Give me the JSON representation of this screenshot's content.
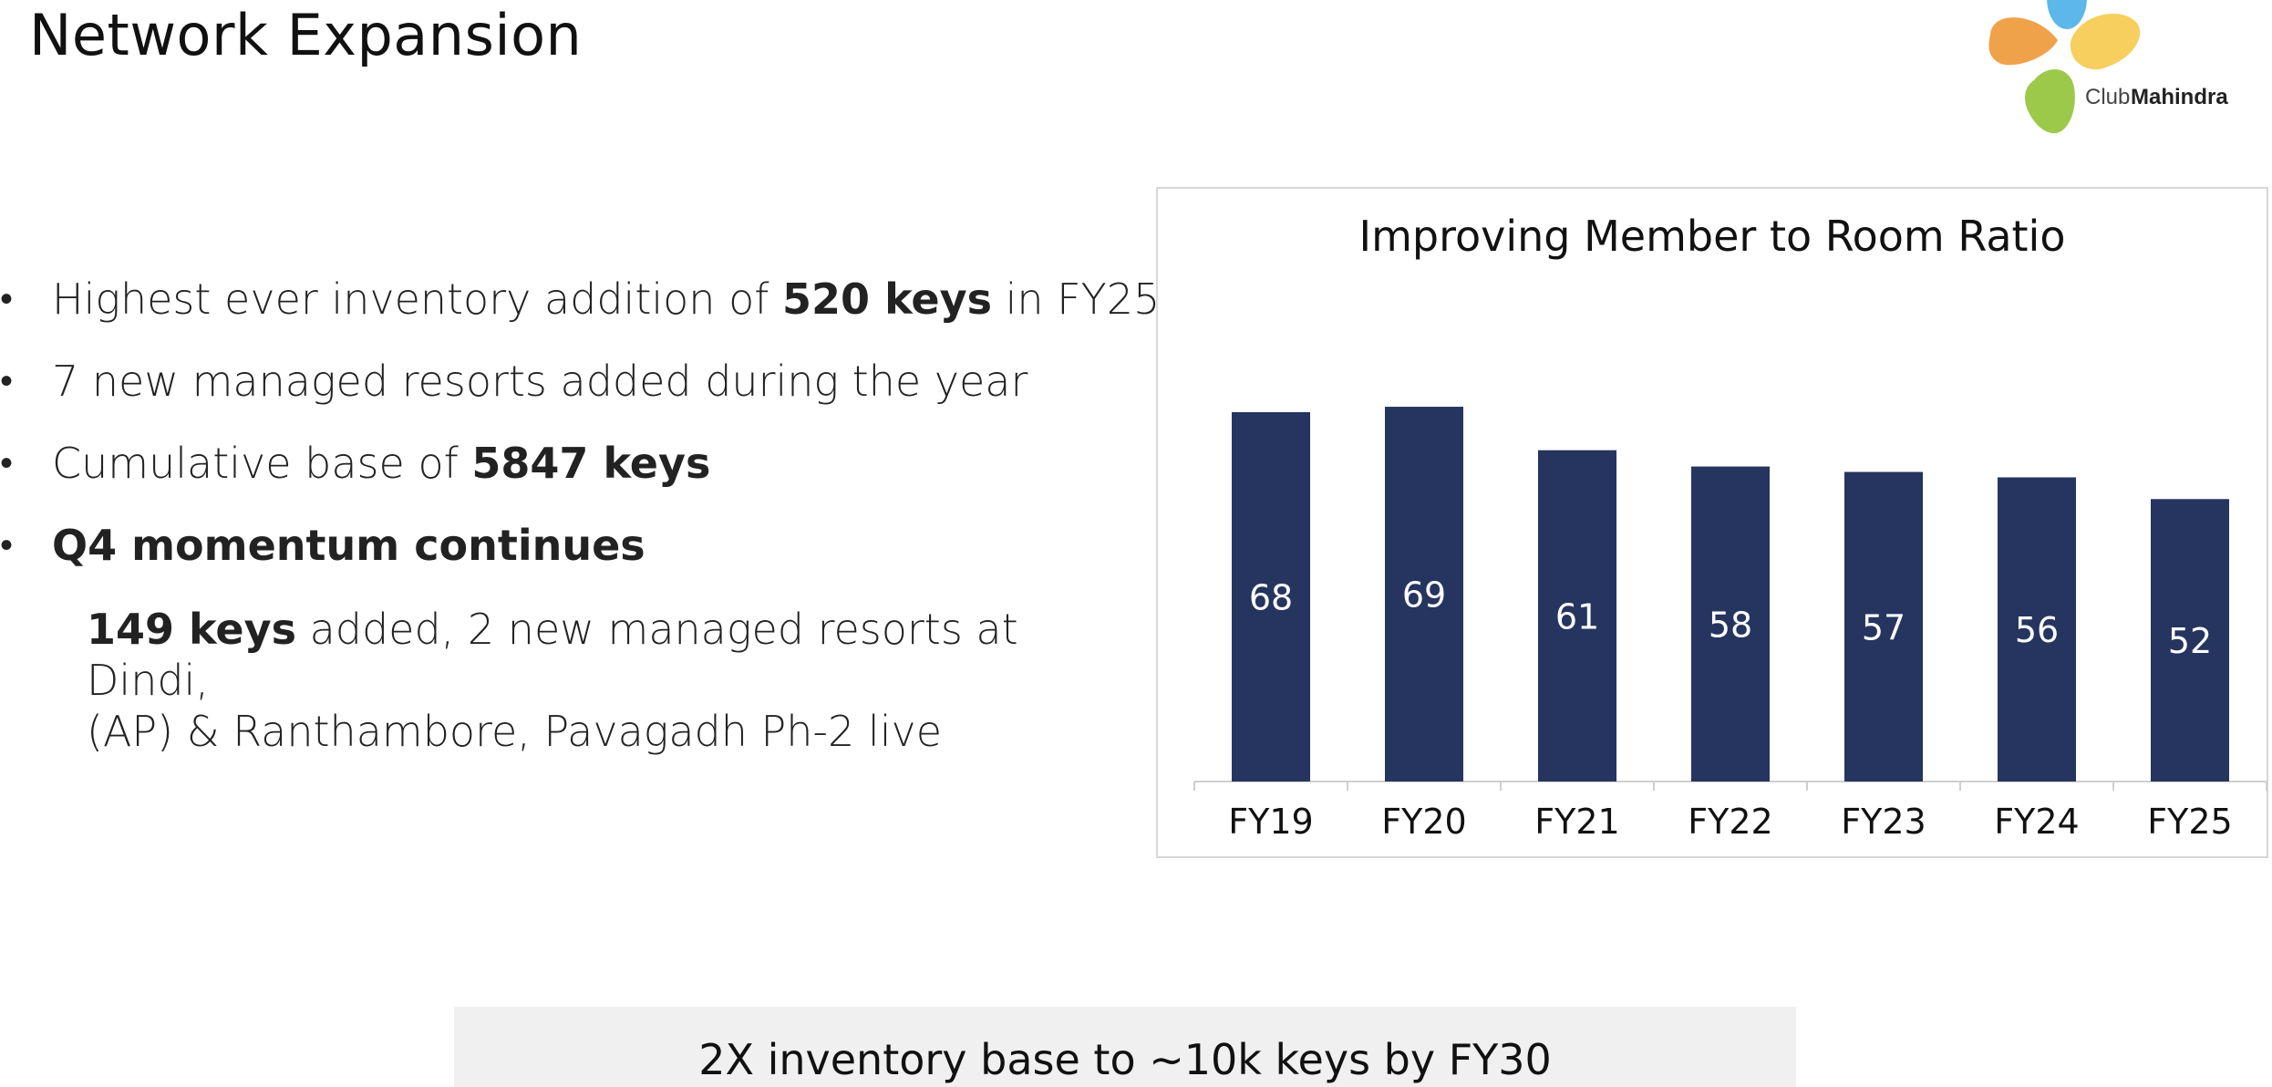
{
  "page": {
    "title": "Network Expansion"
  },
  "logo": {
    "text_club": "Club",
    "text_brand": "Mahindra"
  },
  "bullets": [
    {
      "parts": [
        {
          "text": "Highest ever inventory addition of ",
          "bold": false
        },
        {
          "text": "520 keys",
          "bold": true
        },
        {
          "text": " in FY25",
          "bold": false
        }
      ]
    },
    {
      "parts": [
        {
          "text": "7 new managed resorts added during the year",
          "bold": false
        }
      ]
    },
    {
      "parts": [
        {
          "text": "Cumulative base of ",
          "bold": false
        },
        {
          "text": "5847 keys",
          "bold": true
        }
      ]
    },
    {
      "parts": [
        {
          "text": "Q4 momentum continues",
          "bold": true
        }
      ]
    }
  ],
  "sub_note": {
    "bold_lead": "149 keys",
    "line1_rest": " added, 2 new managed resorts at Dindi,",
    "line2": "(AP) & Ranthambore, Pavagadh Ph-2 live"
  },
  "chart_data": {
    "type": "bar",
    "title": "Improving Member to Room Ratio",
    "categories": [
      "FY19",
      "FY20",
      "FY21",
      "FY22",
      "FY23",
      "FY24",
      "FY25"
    ],
    "values": [
      68,
      69,
      61,
      58,
      57,
      56,
      52
    ],
    "xlabel": "",
    "ylabel": "",
    "grid": false,
    "legend": "none",
    "bar_color": "#25355f",
    "label_color": "#ffffff"
  },
  "banner": {
    "text": "2X inventory base to ~10k keys by FY30"
  },
  "colors": {
    "bar": "#25355f",
    "banner_bg": "#f0f0f0",
    "logo_orange": "#f0a24a",
    "logo_yellow": "#f6cf5e",
    "logo_green": "#9cc94a",
    "logo_blue": "#5bb8e8"
  }
}
